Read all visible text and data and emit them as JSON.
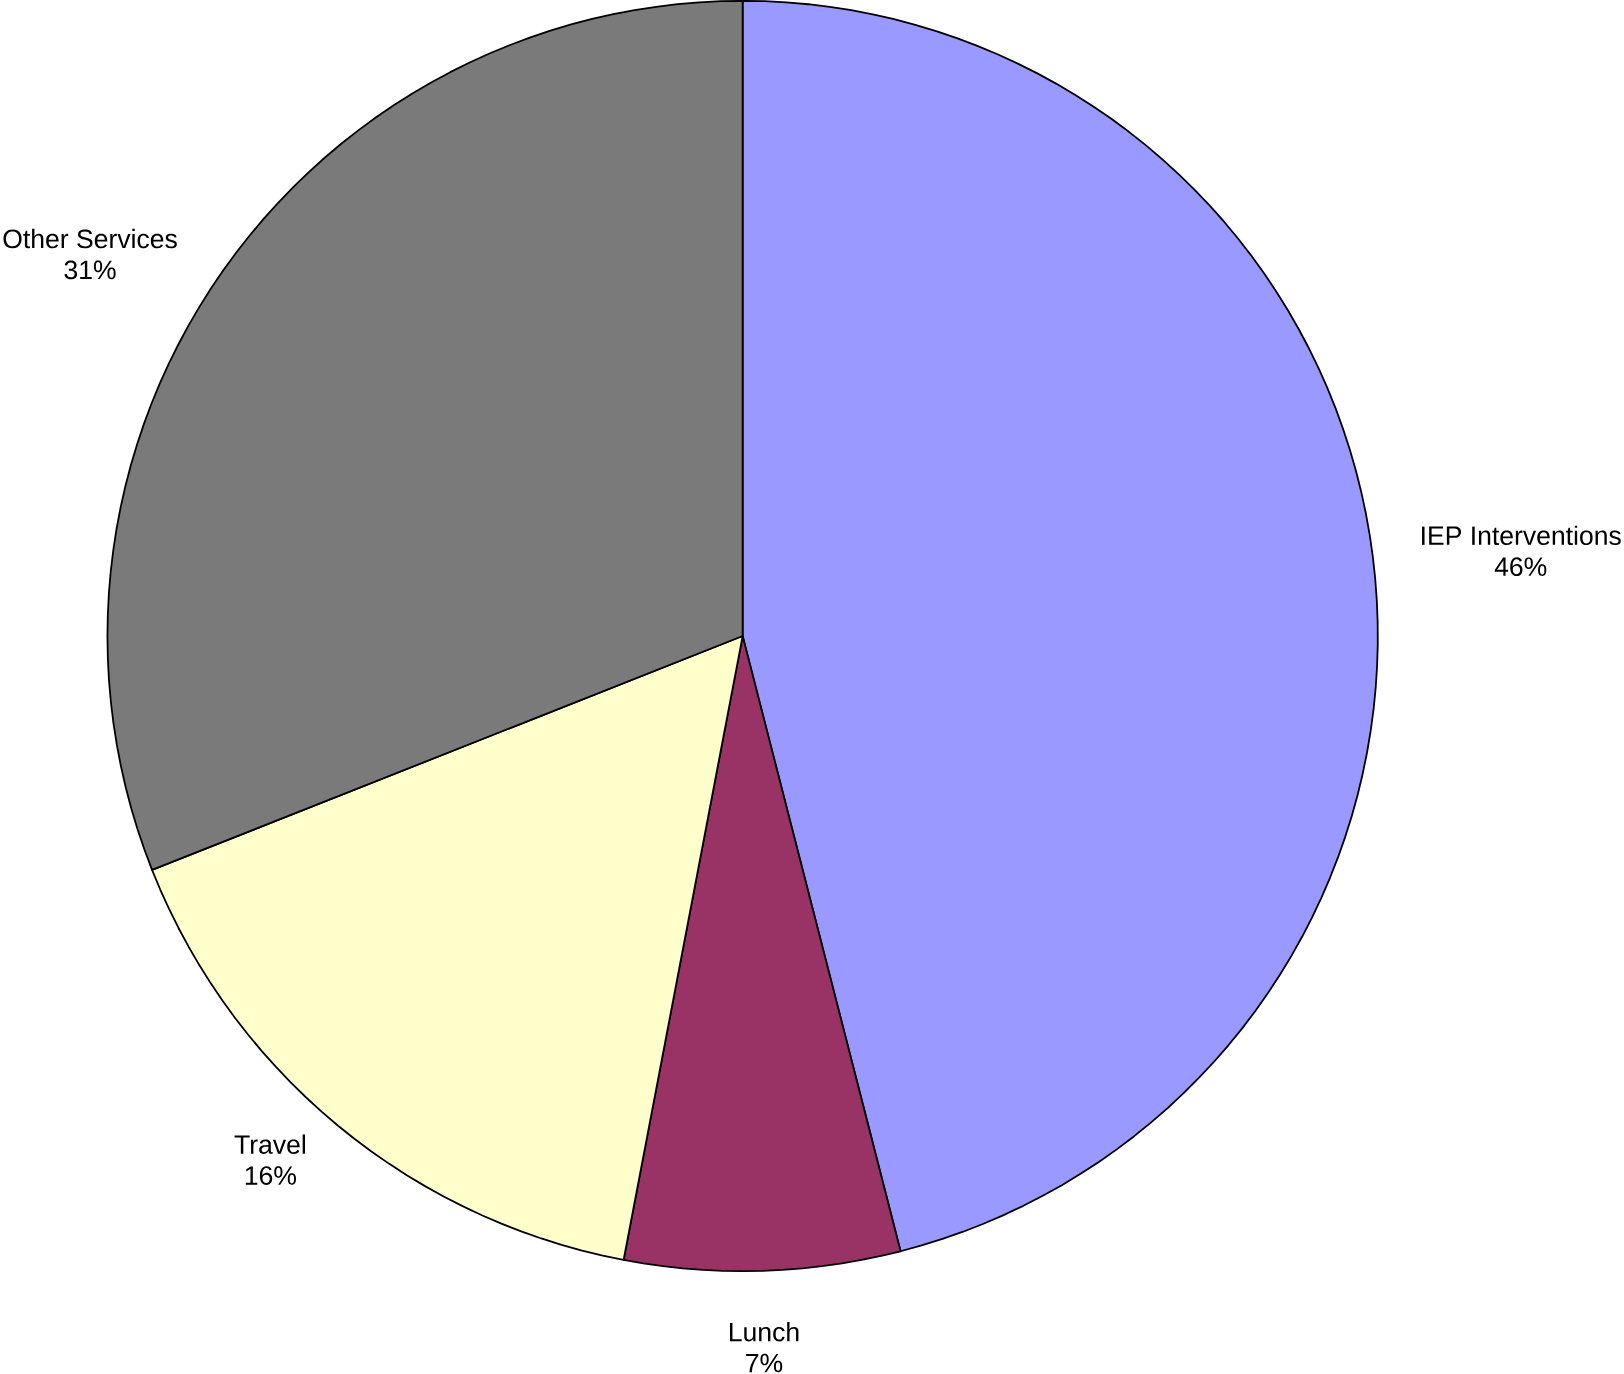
{
  "chart_data": {
    "type": "pie",
    "categories": [
      "IEP Interventions",
      "Lunch",
      "Travel",
      "Other Services"
    ],
    "values": [
      46,
      7,
      16,
      31
    ],
    "value_labels": [
      "46%",
      "7%",
      "16%",
      "31%"
    ],
    "colors": [
      "#9999ff",
      "#993366",
      "#ffffcc",
      "#7a7a7a"
    ]
  }
}
